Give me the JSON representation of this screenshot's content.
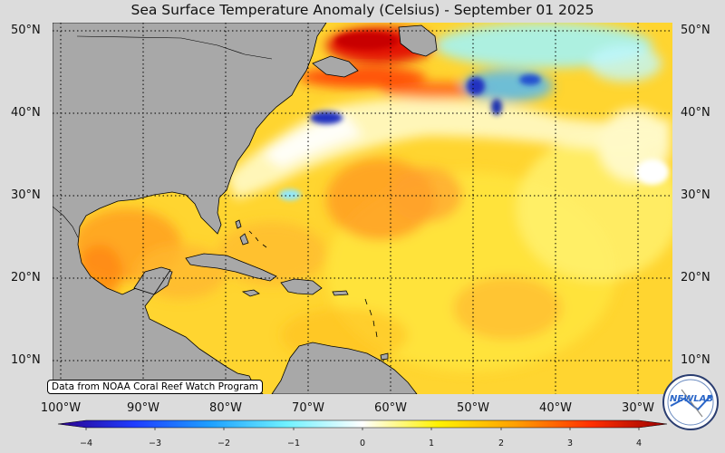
{
  "title": "Sea Surface Temperature Anomaly (Celsius) - September 01 2025",
  "credit": "Data from NOAA Coral Reef Watch Program",
  "logo_text": "NEWLAB",
  "latitude_labels": [
    "50°N",
    "40°N",
    "30°N",
    "20°N",
    "10°N"
  ],
  "longitude_labels": [
    "100°W",
    "90°W",
    "80°W",
    "70°W",
    "60°W",
    "50°W",
    "40°W",
    "30°W"
  ],
  "colorbar": {
    "min": -4,
    "max": 4,
    "ticks": [
      "−4",
      "−3",
      "−2",
      "−1",
      "0",
      "1",
      "2",
      "3",
      "4"
    ],
    "colors": [
      "#2b008c",
      "#1f3cff",
      "#1ea0ff",
      "#6ff1ff",
      "#ffffff",
      "#fff200",
      "#ffa000",
      "#ff3000",
      "#9a0000"
    ]
  },
  "map": {
    "land_color": "#a8a8a8",
    "ocean_base_color": "#ffd230",
    "grid_style": "dotted",
    "extent": {
      "lon_min": -101,
      "lon_max": -26,
      "lat_min": 6,
      "lat_max": 51
    }
  }
}
